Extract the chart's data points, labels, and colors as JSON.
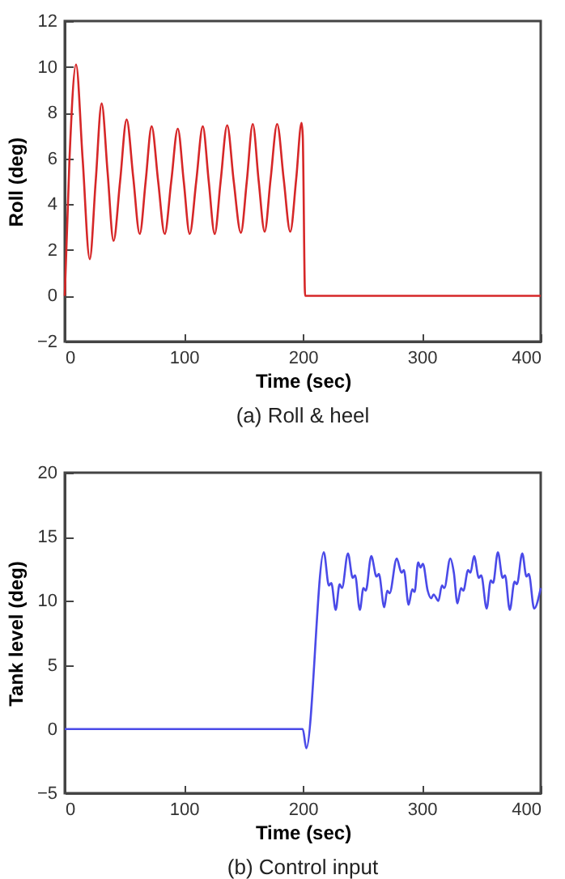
{
  "chart_data": [
    {
      "type": "line",
      "title": "(a) Roll & heel",
      "xlabel": "Time (sec)",
      "ylabel": "Roll (deg)",
      "xlim": [
        0,
        400
      ],
      "xticks": [
        0,
        100,
        200,
        300,
        400
      ],
      "ylim": [
        -2,
        12
      ],
      "yticks": [
        -2,
        0,
        2,
        4,
        6,
        8,
        10,
        12
      ],
      "grid": false,
      "legend": false,
      "marker": "none",
      "line_style": "solid",
      "series": [
        {
          "color": "#d62728",
          "x": [
            0,
            4,
            9.5,
            15,
            21,
            26,
            31,
            36,
            41,
            46.5,
            52,
            57.5,
            63,
            68,
            73,
            78.5,
            84,
            89.5,
            95,
            100,
            105,
            110.5,
            116,
            121,
            126,
            131,
            136.5,
            142,
            148,
            153,
            158,
            163,
            168,
            173,
            178.5,
            184,
            189.5,
            194.5,
            199,
            200,
            202,
            400
          ],
          "values": [
            0,
            6,
            10.1,
            6,
            1.6,
            5,
            8.4,
            5.4,
            2.4,
            5,
            7.7,
            5.2,
            2.7,
            5,
            7.4,
            5,
            2.7,
            5,
            7.3,
            5,
            2.7,
            5,
            7.4,
            5,
            2.7,
            5,
            7.45,
            5,
            2.75,
            5,
            7.5,
            5,
            2.8,
            5.1,
            7.5,
            5.1,
            2.8,
            5.1,
            7.55,
            7,
            0,
            0
          ]
        }
      ]
    },
    {
      "type": "line",
      "title": "(b) Control input",
      "xlabel": "Time (sec)",
      "ylabel": "Tank level (deg)",
      "xlim": [
        0,
        400
      ],
      "xticks": [
        0,
        100,
        200,
        300,
        400
      ],
      "ylim": [
        -5,
        20
      ],
      "yticks": [
        -5,
        0,
        5,
        10,
        15,
        20
      ],
      "grid": false,
      "legend": false,
      "marker": "none",
      "line_style": "solid",
      "series": [
        {
          "color": "#4a4ae8",
          "x": [
            0,
            200,
            203,
            217.7,
            222,
            224,
            227.7,
            231,
            233,
            238,
            242,
            244,
            248,
            251,
            253,
            257.6,
            262,
            264,
            268.5,
            271,
            273,
            279,
            283,
            285,
            289,
            292,
            294,
            297,
            299,
            301,
            305,
            308,
            310,
            314,
            317,
            319,
            324,
            327,
            330,
            333,
            335,
            339,
            341,
            344,
            348,
            350,
            354.6,
            358,
            360,
            364,
            368,
            370,
            374,
            378,
            380,
            384.5,
            388,
            390,
            394.5,
            400
          ],
          "values": [
            0,
            0,
            -1.5,
            13.8,
            11.2,
            11.4,
            9.3,
            11.3,
            11,
            13.7,
            11.8,
            12,
            9.3,
            11,
            10.8,
            13.5,
            11.9,
            12.1,
            9.5,
            10.8,
            10.6,
            13.3,
            12.2,
            12.4,
            9.7,
            10.9,
            10.7,
            13,
            12.6,
            12.9,
            10.8,
            10.2,
            10.5,
            10,
            11.2,
            11,
            13.3,
            12.2,
            9.8,
            11,
            10.8,
            12.4,
            12.2,
            13.5,
            11.8,
            12,
            9.4,
            11.6,
            11.4,
            13.8,
            11.8,
            12,
            9.3,
            11.5,
            11.3,
            13.7,
            11.9,
            12.1,
            9.4,
            11
          ]
        }
      ]
    }
  ]
}
